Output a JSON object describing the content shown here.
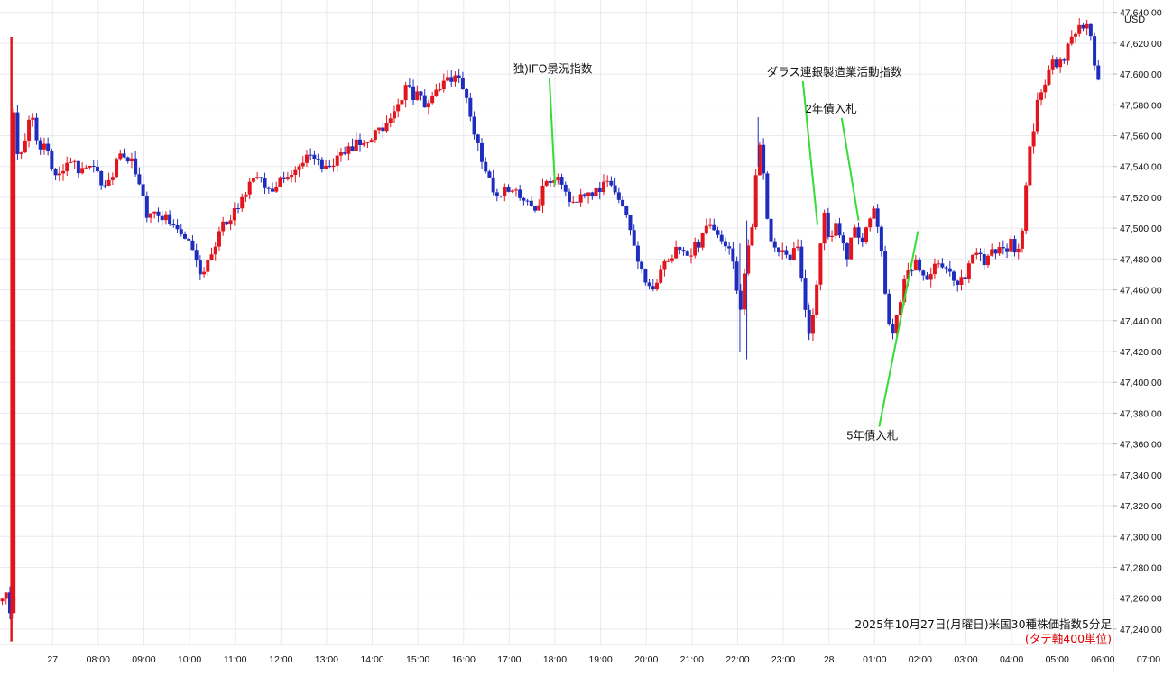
{
  "chart_data": {
    "type": "candlestick",
    "title": "2025年10月27日(月曜日)米国30種株価指数5分足",
    "subtitle": "(タテ軸400単位)",
    "y_unit": "USD",
    "y_ticks": [
      47240,
      47260,
      47280,
      47300,
      47320,
      47340,
      47360,
      47380,
      47400,
      47420,
      47440,
      47460,
      47480,
      47500,
      47520,
      47540,
      47560,
      47580,
      47600,
      47620,
      47640
    ],
    "y_tick_labels": [
      "47,240.00",
      "47,260.00",
      "47,280.00",
      "47,300.00",
      "47,320.00",
      "47,340.00",
      "47,360.00",
      "47,380.00",
      "47,400.00",
      "47,420.00",
      "47,440.00",
      "47,460.00",
      "47,480.00",
      "47,500.00",
      "47,520.00",
      "47,540.00",
      "47,560.00",
      "47,580.00",
      "47,600.00",
      "47,620.00",
      "47,640.00"
    ],
    "ylim": [
      47230,
      47648
    ],
    "x_ticks": [
      "27",
      "08:00",
      "09:00",
      "10:00",
      "11:00",
      "12:00",
      "13:00",
      "14:00",
      "15:00",
      "16:00",
      "17:00",
      "18:00",
      "19:00",
      "20:00",
      "21:00",
      "22:00",
      "23:00",
      "28",
      "01:00",
      "02:00",
      "03:00",
      "04:00",
      "05:00",
      "06:00",
      "07:00"
    ],
    "x_tick_hours": [
      0,
      1,
      2,
      3,
      4,
      5,
      6,
      7,
      8,
      9,
      10,
      11,
      12,
      13,
      14,
      15,
      16,
      17,
      18,
      19,
      20,
      21,
      22,
      23,
      24
    ],
    "xlim_hours": [
      -1.15,
      23.23
    ],
    "grid": true,
    "up_color": "#e0151e",
    "down_color": "#1f2dbf",
    "annotation_color": "#33dd33",
    "price_path": [
      {
        "t": -1.1,
        "v": 47258
      },
      {
        "t": -1.0,
        "v": 47265
      },
      {
        "t": -0.92,
        "v": 47252
      },
      {
        "t": -0.88,
        "v": 47244
      },
      {
        "t": -0.85,
        "v": 47576
      },
      {
        "t": -0.75,
        "v": 47540
      },
      {
        "t": -0.6,
        "v": 47560
      },
      {
        "t": -0.45,
        "v": 47575
      },
      {
        "t": -0.3,
        "v": 47545
      },
      {
        "t": -0.15,
        "v": 47560
      },
      {
        "t": 0.0,
        "v": 47540
      },
      {
        "t": 0.2,
        "v": 47535
      },
      {
        "t": 0.4,
        "v": 47545
      },
      {
        "t": 0.6,
        "v": 47538
      },
      {
        "t": 0.8,
        "v": 47545
      },
      {
        "t": 1.0,
        "v": 47535
      },
      {
        "t": 1.2,
        "v": 47525
      },
      {
        "t": 1.35,
        "v": 47540
      },
      {
        "t": 1.5,
        "v": 47548
      },
      {
        "t": 1.7,
        "v": 47545
      },
      {
        "t": 1.9,
        "v": 47525
      },
      {
        "t": 2.1,
        "v": 47505
      },
      {
        "t": 2.3,
        "v": 47510
      },
      {
        "t": 2.5,
        "v": 47505
      },
      {
        "t": 2.75,
        "v": 47500
      },
      {
        "t": 3.0,
        "v": 47492
      },
      {
        "t": 3.2,
        "v": 47470
      },
      {
        "t": 3.4,
        "v": 47478
      },
      {
        "t": 3.6,
        "v": 47492
      },
      {
        "t": 3.8,
        "v": 47505
      },
      {
        "t": 4.0,
        "v": 47510
      },
      {
        "t": 4.2,
        "v": 47520
      },
      {
        "t": 4.4,
        "v": 47535
      },
      {
        "t": 4.6,
        "v": 47528
      },
      {
        "t": 4.8,
        "v": 47522
      },
      {
        "t": 5.0,
        "v": 47532
      },
      {
        "t": 5.3,
        "v": 47540
      },
      {
        "t": 5.6,
        "v": 47545
      },
      {
        "t": 6.0,
        "v": 47540
      },
      {
        "t": 6.3,
        "v": 47548
      },
      {
        "t": 6.6,
        "v": 47555
      },
      {
        "t": 6.9,
        "v": 47555
      },
      {
        "t": 7.2,
        "v": 47565
      },
      {
        "t": 7.5,
        "v": 47578
      },
      {
        "t": 7.75,
        "v": 47590
      },
      {
        "t": 8.0,
        "v": 47585
      },
      {
        "t": 8.2,
        "v": 47580
      },
      {
        "t": 8.45,
        "v": 47590
      },
      {
        "t": 8.7,
        "v": 47598
      },
      {
        "t": 8.9,
        "v": 47595
      },
      {
        "t": 9.1,
        "v": 47580
      },
      {
        "t": 9.3,
        "v": 47555
      },
      {
        "t": 9.55,
        "v": 47530
      },
      {
        "t": 9.8,
        "v": 47522
      },
      {
        "t": 10.0,
        "v": 47524
      },
      {
        "t": 10.2,
        "v": 47522
      },
      {
        "t": 10.4,
        "v": 47518
      },
      {
        "t": 10.6,
        "v": 47512
      },
      {
        "t": 10.8,
        "v": 47530
      },
      {
        "t": 11.0,
        "v": 47535
      },
      {
        "t": 11.2,
        "v": 47522
      },
      {
        "t": 11.4,
        "v": 47516
      },
      {
        "t": 11.6,
        "v": 47522
      },
      {
        "t": 11.8,
        "v": 47520
      },
      {
        "t": 12.0,
        "v": 47526
      },
      {
        "t": 12.2,
        "v": 47530
      },
      {
        "t": 12.4,
        "v": 47520
      },
      {
        "t": 12.6,
        "v": 47505
      },
      {
        "t": 12.8,
        "v": 47480
      },
      {
        "t": 13.0,
        "v": 47466
      },
      {
        "t": 13.2,
        "v": 47462
      },
      {
        "t": 13.4,
        "v": 47478
      },
      {
        "t": 13.6,
        "v": 47485
      },
      {
        "t": 13.8,
        "v": 47482
      },
      {
        "t": 14.0,
        "v": 47486
      },
      {
        "t": 14.2,
        "v": 47492
      },
      {
        "t": 14.4,
        "v": 47502
      },
      {
        "t": 14.6,
        "v": 47498
      },
      {
        "t": 14.8,
        "v": 47488
      },
      {
        "t": 14.95,
        "v": 47470
      },
      {
        "t": 15.05,
        "v": 47440
      },
      {
        "t": 15.2,
        "v": 47482
      },
      {
        "t": 15.35,
        "v": 47505
      },
      {
        "t": 15.45,
        "v": 47560
      },
      {
        "t": 15.55,
        "v": 47540
      },
      {
        "t": 15.7,
        "v": 47495
      },
      {
        "t": 15.85,
        "v": 47485
      },
      {
        "t": 16.0,
        "v": 47490
      },
      {
        "t": 16.1,
        "v": 47475
      },
      {
        "t": 16.3,
        "v": 47488
      },
      {
        "t": 16.4,
        "v": 47468
      },
      {
        "t": 16.5,
        "v": 47440
      },
      {
        "t": 16.6,
        "v": 47432
      },
      {
        "t": 16.7,
        "v": 47450
      },
      {
        "t": 16.8,
        "v": 47490
      },
      {
        "t": 16.9,
        "v": 47508
      },
      {
        "t": 17.0,
        "v": 47495
      },
      {
        "t": 17.2,
        "v": 47502
      },
      {
        "t": 17.4,
        "v": 47480
      },
      {
        "t": 17.55,
        "v": 47500
      },
      {
        "t": 17.7,
        "v": 47488
      },
      {
        "t": 17.85,
        "v": 47500
      },
      {
        "t": 18.0,
        "v": 47510
      },
      {
        "t": 18.1,
        "v": 47500
      },
      {
        "t": 18.2,
        "v": 47472
      },
      {
        "t": 18.3,
        "v": 47440
      },
      {
        "t": 18.4,
        "v": 47428
      },
      {
        "t": 18.55,
        "v": 47450
      },
      {
        "t": 18.7,
        "v": 47470
      },
      {
        "t": 18.85,
        "v": 47478
      },
      {
        "t": 19.0,
        "v": 47475
      },
      {
        "t": 19.2,
        "v": 47468
      },
      {
        "t": 19.4,
        "v": 47478
      },
      {
        "t": 19.6,
        "v": 47470
      },
      {
        "t": 19.8,
        "v": 47462
      },
      {
        "t": 20.0,
        "v": 47470
      },
      {
        "t": 20.2,
        "v": 47482
      },
      {
        "t": 20.4,
        "v": 47480
      },
      {
        "t": 20.6,
        "v": 47488
      },
      {
        "t": 20.8,
        "v": 47484
      },
      {
        "t": 21.0,
        "v": 47490
      },
      {
        "t": 21.1,
        "v": 47478
      },
      {
        "t": 21.2,
        "v": 47490
      },
      {
        "t": 21.3,
        "v": 47520
      },
      {
        "t": 21.4,
        "v": 47550
      },
      {
        "t": 21.55,
        "v": 47578
      },
      {
        "t": 21.7,
        "v": 47592
      },
      {
        "t": 21.85,
        "v": 47604
      },
      {
        "t": 22.0,
        "v": 47608
      },
      {
        "t": 22.15,
        "v": 47612
      },
      {
        "t": 22.3,
        "v": 47620
      },
      {
        "t": 22.45,
        "v": 47628
      },
      {
        "t": 22.55,
        "v": 47634
      },
      {
        "t": 22.65,
        "v": 47630
      },
      {
        "t": 22.75,
        "v": 47620
      },
      {
        "t": 22.85,
        "v": 47604
      },
      {
        "t": 22.9,
        "v": 47596
      }
    ],
    "spikes": [
      {
        "t": -0.9,
        "low": 47232,
        "high": 47624
      },
      {
        "t": 15.05,
        "low": 47420,
        "high": 47490
      },
      {
        "t": 15.2,
        "low": 47415,
        "high": 47505
      },
      {
        "t": 15.45,
        "low": 47540,
        "high": 47572
      },
      {
        "t": 16.55,
        "low": 47428,
        "high": 47452
      }
    ],
    "annotations": [
      {
        "text": "独)IFO景況指数",
        "label_t": 10.8,
        "label_v": 47601,
        "point_t": 11.0,
        "point_v": 47528
      },
      {
        "text": "ダラス連銀製造業活動指数",
        "label_t": 16.35,
        "label_v": 47599,
        "point_t": 16.75,
        "point_v": 47502
      },
      {
        "text": "2年債入札",
        "label_t": 17.2,
        "label_v": 47575,
        "point_t": 17.65,
        "point_v": 47505
      },
      {
        "text": "5年債入札",
        "label_t": 18.1,
        "label_v": 47363,
        "point_t": 18.95,
        "point_v": 47498
      }
    ]
  }
}
